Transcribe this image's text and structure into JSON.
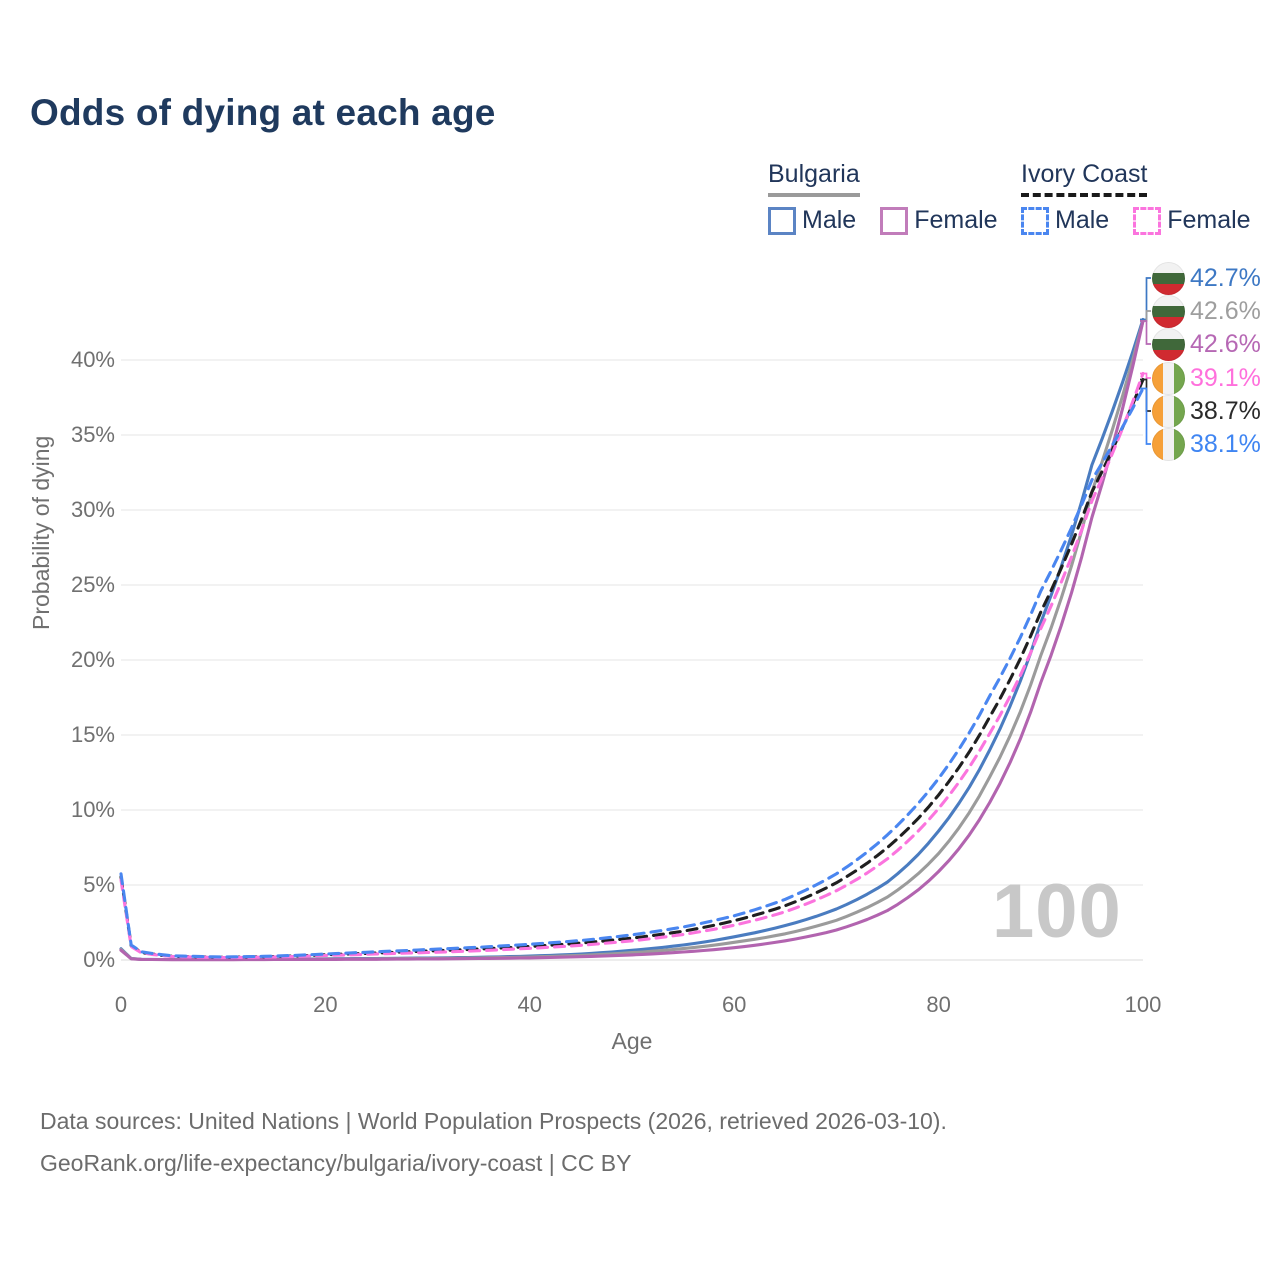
{
  "page": {
    "title": "Odds of dying at each age"
  },
  "legend": {
    "groups": [
      {
        "name": "Bulgaria",
        "underline": "solid",
        "underline_color": "#9a9a9a",
        "items": [
          {
            "label": "Male",
            "swatch_color": "#5b84c4",
            "dash": false
          },
          {
            "label": "Female",
            "swatch_color": "#c17cba",
            "dash": false
          }
        ]
      },
      {
        "name": "Ivory Coast",
        "underline": "dashed",
        "underline_color": "#1a1a1a",
        "items": [
          {
            "label": "Male",
            "swatch_color": "#4a86f0",
            "dash": true
          },
          {
            "label": "Female",
            "swatch_color": "#fb74de",
            "dash": true
          }
        ]
      }
    ]
  },
  "chart_data": {
    "type": "line",
    "title": "Odds of dying at each age",
    "xlabel": "Age",
    "ylabel": "Probability of dying",
    "xlim": [
      0,
      100
    ],
    "ylim": [
      0,
      43
    ],
    "grid": "horizontal",
    "xticks": [
      0,
      20,
      40,
      60,
      80,
      100
    ],
    "yticks": [
      0,
      5,
      10,
      15,
      20,
      25,
      30,
      35,
      40
    ],
    "ytick_suffix": "%",
    "watermark": "100",
    "ages": [
      0,
      1,
      2,
      5,
      10,
      15,
      20,
      25,
      30,
      35,
      40,
      45,
      50,
      55,
      60,
      65,
      70,
      75,
      80,
      85,
      90,
      95,
      100
    ],
    "series": [
      {
        "name": "Bulgaria Male",
        "country": "Bulgaria",
        "group": "Male",
        "color": "#4a7cc0",
        "dash": false,
        "values_pct": [
          0.75,
          0.1,
          0.05,
          0.03,
          0.03,
          0.05,
          0.08,
          0.1,
          0.13,
          0.18,
          0.26,
          0.4,
          0.65,
          1.0,
          1.55,
          2.3,
          3.4,
          5.2,
          8.6,
          14.0,
          22.5,
          33.0,
          42.7
        ]
      },
      {
        "name": "Bulgaria All",
        "country": "Bulgaria",
        "group": "All",
        "color": "#9b9b9b",
        "dash": false,
        "values_pct": [
          0.7,
          0.09,
          0.04,
          0.03,
          0.03,
          0.04,
          0.06,
          0.08,
          0.1,
          0.14,
          0.2,
          0.31,
          0.49,
          0.76,
          1.18,
          1.75,
          2.65,
          4.2,
          7.1,
          12.2,
          20.3,
          31.2,
          42.6
        ]
      },
      {
        "name": "Bulgaria Female",
        "country": "Bulgaria",
        "group": "Female",
        "color": "#b264af",
        "dash": false,
        "values_pct": [
          0.65,
          0.08,
          0.04,
          0.02,
          0.02,
          0.03,
          0.04,
          0.05,
          0.07,
          0.1,
          0.14,
          0.22,
          0.34,
          0.53,
          0.82,
          1.28,
          2.0,
          3.3,
          5.9,
          10.5,
          18.5,
          29.5,
          42.6
        ]
      },
      {
        "name": "Ivory Coast All",
        "country": "Ivory Coast",
        "group": "All",
        "color": "#1f1f1f",
        "dash": true,
        "values_pct": [
          5.55,
          0.95,
          0.5,
          0.25,
          0.18,
          0.23,
          0.35,
          0.47,
          0.6,
          0.73,
          0.9,
          1.13,
          1.46,
          1.92,
          2.62,
          3.62,
          5.15,
          7.5,
          11.0,
          16.2,
          23.2,
          31.2,
          38.7
        ]
      },
      {
        "name": "Ivory Coast Female",
        "country": "Ivory Coast",
        "group": "Female",
        "color": "#fb74de",
        "dash": true,
        "values_pct": [
          5.35,
          0.9,
          0.48,
          0.23,
          0.16,
          0.2,
          0.3,
          0.4,
          0.5,
          0.62,
          0.78,
          0.98,
          1.28,
          1.7,
          2.32,
          3.22,
          4.62,
          6.75,
          10.1,
          15.1,
          22.1,
          30.6,
          39.1
        ]
      },
      {
        "name": "Ivory Coast Male",
        "country": "Ivory Coast",
        "group": "Male",
        "color": "#4a86f0",
        "dash": true,
        "values_pct": [
          5.75,
          1.0,
          0.55,
          0.28,
          0.2,
          0.26,
          0.4,
          0.55,
          0.7,
          0.85,
          1.05,
          1.3,
          1.68,
          2.2,
          2.95,
          4.05,
          5.75,
          8.35,
          12.1,
          17.6,
          24.6,
          32.0,
          38.1
        ]
      }
    ],
    "end_labels": [
      {
        "text": "42.7%",
        "color": "#3d78c4",
        "flag": "bulgaria",
        "series": "Bulgaria Male"
      },
      {
        "text": "42.6%",
        "color": "#9e9e9e",
        "flag": "bulgaria",
        "series": "Bulgaria All"
      },
      {
        "text": "42.6%",
        "color": "#b668b4",
        "flag": "bulgaria",
        "series": "Bulgaria Female"
      },
      {
        "text": "39.1%",
        "color": "#ff70dc",
        "flag": "ivory-coast",
        "series": "Ivory Coast Female"
      },
      {
        "text": "38.7%",
        "color": "#2a2a2a",
        "flag": "ivory-coast",
        "series": "Ivory Coast All"
      },
      {
        "text": "38.1%",
        "color": "#3f85f2",
        "flag": "ivory-coast",
        "series": "Ivory Coast Male"
      }
    ]
  },
  "footer": {
    "line1": "Data sources: United Nations | World Population Prospects (2026, retrieved 2026-03-10).",
    "line2": "GeoRank.org/life-expectancy/bulgaria/ivory-coast | CC BY"
  }
}
